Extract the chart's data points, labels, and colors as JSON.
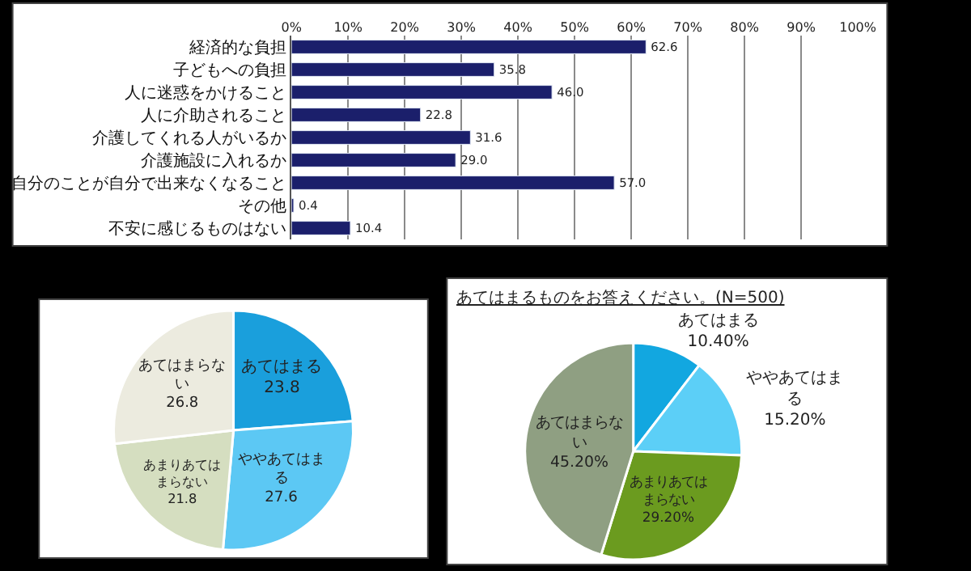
{
  "chart_data": [
    {
      "type": "bar",
      "orientation": "horizontal",
      "categories": [
        "経済的な負担",
        "子どもへの負担",
        "人に迷惑をかけること",
        "人に介助されること",
        "介護してくれる人がいるか",
        "介護施設に入れるか",
        "自分のことが自分で出来なくなること",
        "その他",
        "不安に感じるものはない"
      ],
      "values": [
        62.6,
        35.8,
        46.0,
        22.8,
        31.6,
        29.0,
        57.0,
        0.4,
        10.4
      ],
      "value_labels": [
        "62.6",
        "35.8",
        "46.0",
        "22.8",
        "31.6",
        "29.0",
        "57.0",
        "0.4",
        "10.4"
      ],
      "color": "#1b1f6b",
      "xlim": [
        0,
        100
      ],
      "xticks": [
        {
          "value": 0,
          "label": "0%"
        },
        {
          "value": 10,
          "label": "10%"
        },
        {
          "value": 20,
          "label": "20%"
        },
        {
          "value": 30,
          "label": "30%"
        },
        {
          "value": 40,
          "label": "40%"
        },
        {
          "value": 50,
          "label": "50%"
        },
        {
          "value": 60,
          "label": "60%"
        },
        {
          "value": 70,
          "label": "70%"
        },
        {
          "value": 80,
          "label": "80%"
        },
        {
          "value": 90,
          "label": "90%"
        },
        {
          "value": 100,
          "label": "100%"
        }
      ],
      "grid": "x",
      "legend": false
    },
    {
      "type": "pie",
      "categories": [
        "あてはまる",
        "ややあてはまる",
        "あまりあてはまらない",
        "あてはまらない"
      ],
      "values": [
        23.8,
        27.6,
        21.8,
        26.8
      ],
      "value_labels": [
        "23.8",
        "27.6",
        "21.8",
        "26.8"
      ],
      "colors": [
        "#1a9fdc",
        "#5cc8f4",
        "#d5dec0",
        "#ecebdf"
      ],
      "legend": false
    },
    {
      "type": "pie",
      "title": "あてはまるものをお答えください。(N=500)",
      "categories": [
        "あてはまる",
        "ややあてはまる",
        "あまりあてはまらない",
        "あてはまらない"
      ],
      "values": [
        10.4,
        15.2,
        29.2,
        45.2
      ],
      "value_labels": [
        "10.40%",
        "15.20%",
        "29.20%",
        "45.20%"
      ],
      "colors": [
        "#12a7e0",
        "#5ccff7",
        "#6b9b1f",
        "#8f9f82"
      ],
      "legend": false
    }
  ]
}
